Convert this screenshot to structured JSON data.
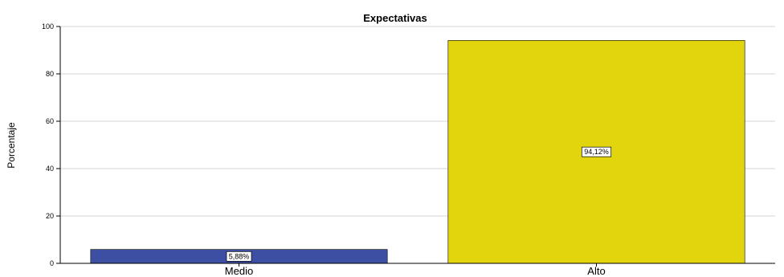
{
  "chart_data": {
    "type": "bar",
    "title": "Expectativas",
    "xlabel": "",
    "ylabel": "Porcentaje",
    "categories": [
      "Medio",
      "Alto"
    ],
    "values": [
      5.88,
      94.12
    ],
    "data_labels": [
      "5,88%",
      "94,12%"
    ],
    "colors": [
      "#3d4fa3",
      "#e2d50e"
    ],
    "ylim": [
      0,
      100
    ],
    "yticks": [
      0,
      20,
      40,
      60,
      80,
      100
    ],
    "ytick_labels": [
      "0",
      "20",
      "40",
      "60",
      "80",
      "100"
    ],
    "grid": true,
    "legend": "none"
  }
}
